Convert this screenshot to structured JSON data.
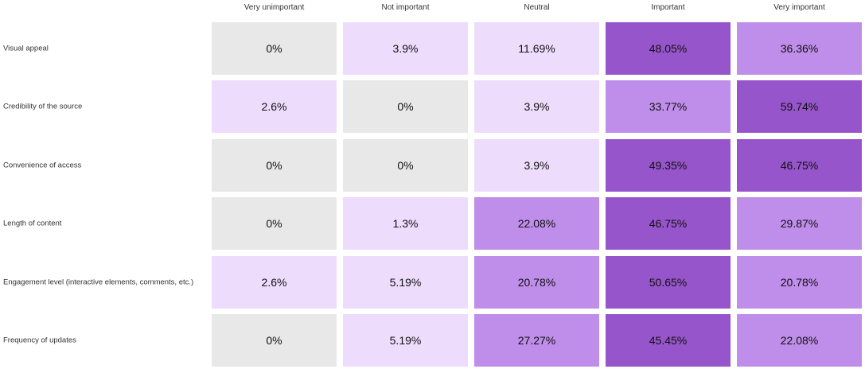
{
  "chart_data": {
    "type": "heatmap",
    "title": "",
    "columns": [
      "Very unimportant",
      "Not important",
      "Neutral",
      "Important",
      "Very important"
    ],
    "rows": [
      "Visual appeal",
      "Credibility of the source",
      "Convenience of access",
      "Length of content",
      "Engagement level (interactive elements, comments, etc.)",
      "Frequency of updates"
    ],
    "values": [
      [
        0,
        3.9,
        11.69,
        48.05,
        36.36
      ],
      [
        2.6,
        0,
        3.9,
        33.77,
        59.74
      ],
      [
        0,
        0,
        3.9,
        49.35,
        46.75
      ],
      [
        0,
        1.3,
        22.08,
        46.75,
        29.87
      ],
      [
        2.6,
        5.19,
        20.78,
        50.65,
        20.78
      ],
      [
        0,
        5.19,
        27.27,
        45.45,
        22.08
      ]
    ],
    "value_labels": [
      [
        "0%",
        "3.9%",
        "11.69%",
        "48.05%",
        "36.36%"
      ],
      [
        "2.6%",
        "0%",
        "3.9%",
        "33.77%",
        "59.74%"
      ],
      [
        "0%",
        "0%",
        "3.9%",
        "49.35%",
        "46.75%"
      ],
      [
        "0%",
        "1.3%",
        "22.08%",
        "46.75%",
        "29.87%"
      ],
      [
        "2.6%",
        "5.19%",
        "20.78%",
        "50.65%",
        "20.78%"
      ],
      [
        "0%",
        "5.19%",
        "27.27%",
        "45.45%",
        "22.08%"
      ]
    ],
    "color_scale": [
      {
        "max": 0,
        "color": "#e8e8e8"
      },
      {
        "max": 12,
        "color": "#eedcfd"
      },
      {
        "max": 40,
        "color": "#bf8dea"
      },
      {
        "max": 100,
        "color": "#9655ca"
      }
    ]
  }
}
